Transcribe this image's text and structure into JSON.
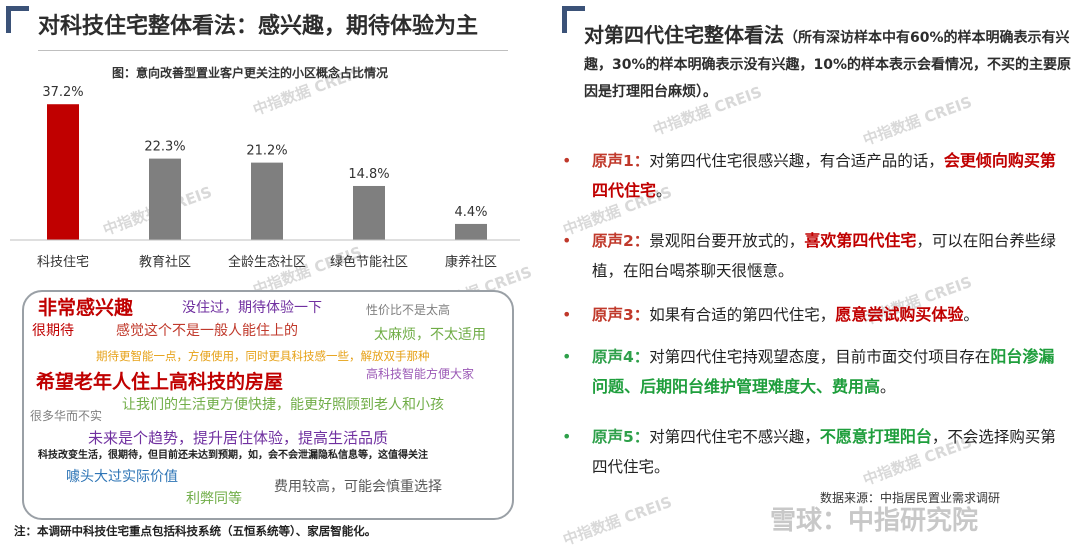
{
  "left": {
    "title": "对科技住宅整体看法：感兴趣，期待体验为主",
    "chart_title": "图：意向改善型置业客户更关注的小区概念占比情况",
    "note": "注：本调研中科技住宅重点包括科技系统（五恒系统等）、家居智能化。"
  },
  "chart_data": {
    "type": "bar",
    "title": "图：意向改善型置业客户更关注的小区概念占比情况",
    "categories": [
      "科技住宅",
      "教育社区",
      "全龄生态社区",
      "绿色节能社区",
      "康养社区"
    ],
    "values": [
      37.2,
      22.3,
      21.2,
      14.8,
      4.4
    ],
    "value_labels": [
      "37.2%",
      "22.3%",
      "21.2%",
      "14.8%",
      "4.4%"
    ],
    "highlight_color": "#c00000",
    "bar_color": "#7f7f7f",
    "ylim": [
      0,
      40
    ],
    "grid": false
  },
  "word_cloud": [
    {
      "text": "非常感兴趣",
      "color": "#c00000"
    },
    {
      "text": "没住过，期待体验一下",
      "color": "#7030a0"
    },
    {
      "text": "性价比不是太高",
      "color": "#7f7f7f"
    },
    {
      "text": "很期待",
      "color": "#c00000"
    },
    {
      "text": "感觉这个不是一般人能住上的",
      "color": "#c0392b"
    },
    {
      "text": "太麻烦，不太适用",
      "color": "#70ad47"
    },
    {
      "text": "期待更智能一点，方便使用，同时更具科技感一些，解放双手那种",
      "color": "#e6a117"
    },
    {
      "text": "希望老年人住上高科技的房屋",
      "color": "#c00000"
    },
    {
      "text": "高科技智能方便大家",
      "color": "#9b59b6"
    },
    {
      "text": "很多华而不实",
      "color": "#7f7f7f"
    },
    {
      "text": "让我们的生活更方便快捷，能更好照顾到老人和小孩",
      "color": "#70ad47"
    },
    {
      "text": "未来是个趋势，提升居住体验，提高生活品质",
      "color": "#7030a0"
    },
    {
      "text": "科技改变生活，很期待，但目前还未达到预期，如，会不会泄漏隐私信息等，这值得关注",
      "color": "#222222"
    },
    {
      "text": "噱头大过实际价值",
      "color": "#2e75b6"
    },
    {
      "text": "费用较高，可能会慎重选择",
      "color": "#595959"
    },
    {
      "text": "利弊同等",
      "color": "#70ad47"
    }
  ],
  "right": {
    "title_main": "对第四代住宅整体看法",
    "title_sub": "（所有深访样本中有60%的样本明确表示有兴趣，30%的样本明确表示没有兴趣，10%的样本表示会看情况，不买的主要原因是打理阳台麻烦）。",
    "bullet": "•",
    "quotes": [
      {
        "label": "原声1：",
        "text": "对第四代住宅很感兴趣，有合适产品的话，",
        "highlight": "会更倾向购买第四代住宅",
        "after": "。"
      },
      {
        "label": "原声2：",
        "text": "景观阳台要开放式的，",
        "highlight": "喜欢第四代住宅",
        "after": "，可以在阳台养些绿植，在阳台喝茶聊天很惬意。"
      },
      {
        "label": "原声3：",
        "text": "如果有合适的第四代住宅，",
        "highlight": "愿意尝试购买体验",
        "after": "。"
      },
      {
        "label": "原声4：",
        "text": "对第四代住宅持观望态度，目前市面交付项目存在",
        "highlight": "阳台渗漏问题、后期阳台维护管理难度大、费用高",
        "after": "。"
      },
      {
        "label": "原声5：",
        "text": "对第四代住宅不感兴趣，",
        "highlight": "不愿意打理阳台",
        "after": "，不会选择购买第四代住宅。"
      }
    ],
    "source": "数据来源：中指居民置业需求调研"
  },
  "watermarks": {
    "creis": "中指数据 CREIS",
    "xueqiu": "雪球：中指研究院"
  }
}
